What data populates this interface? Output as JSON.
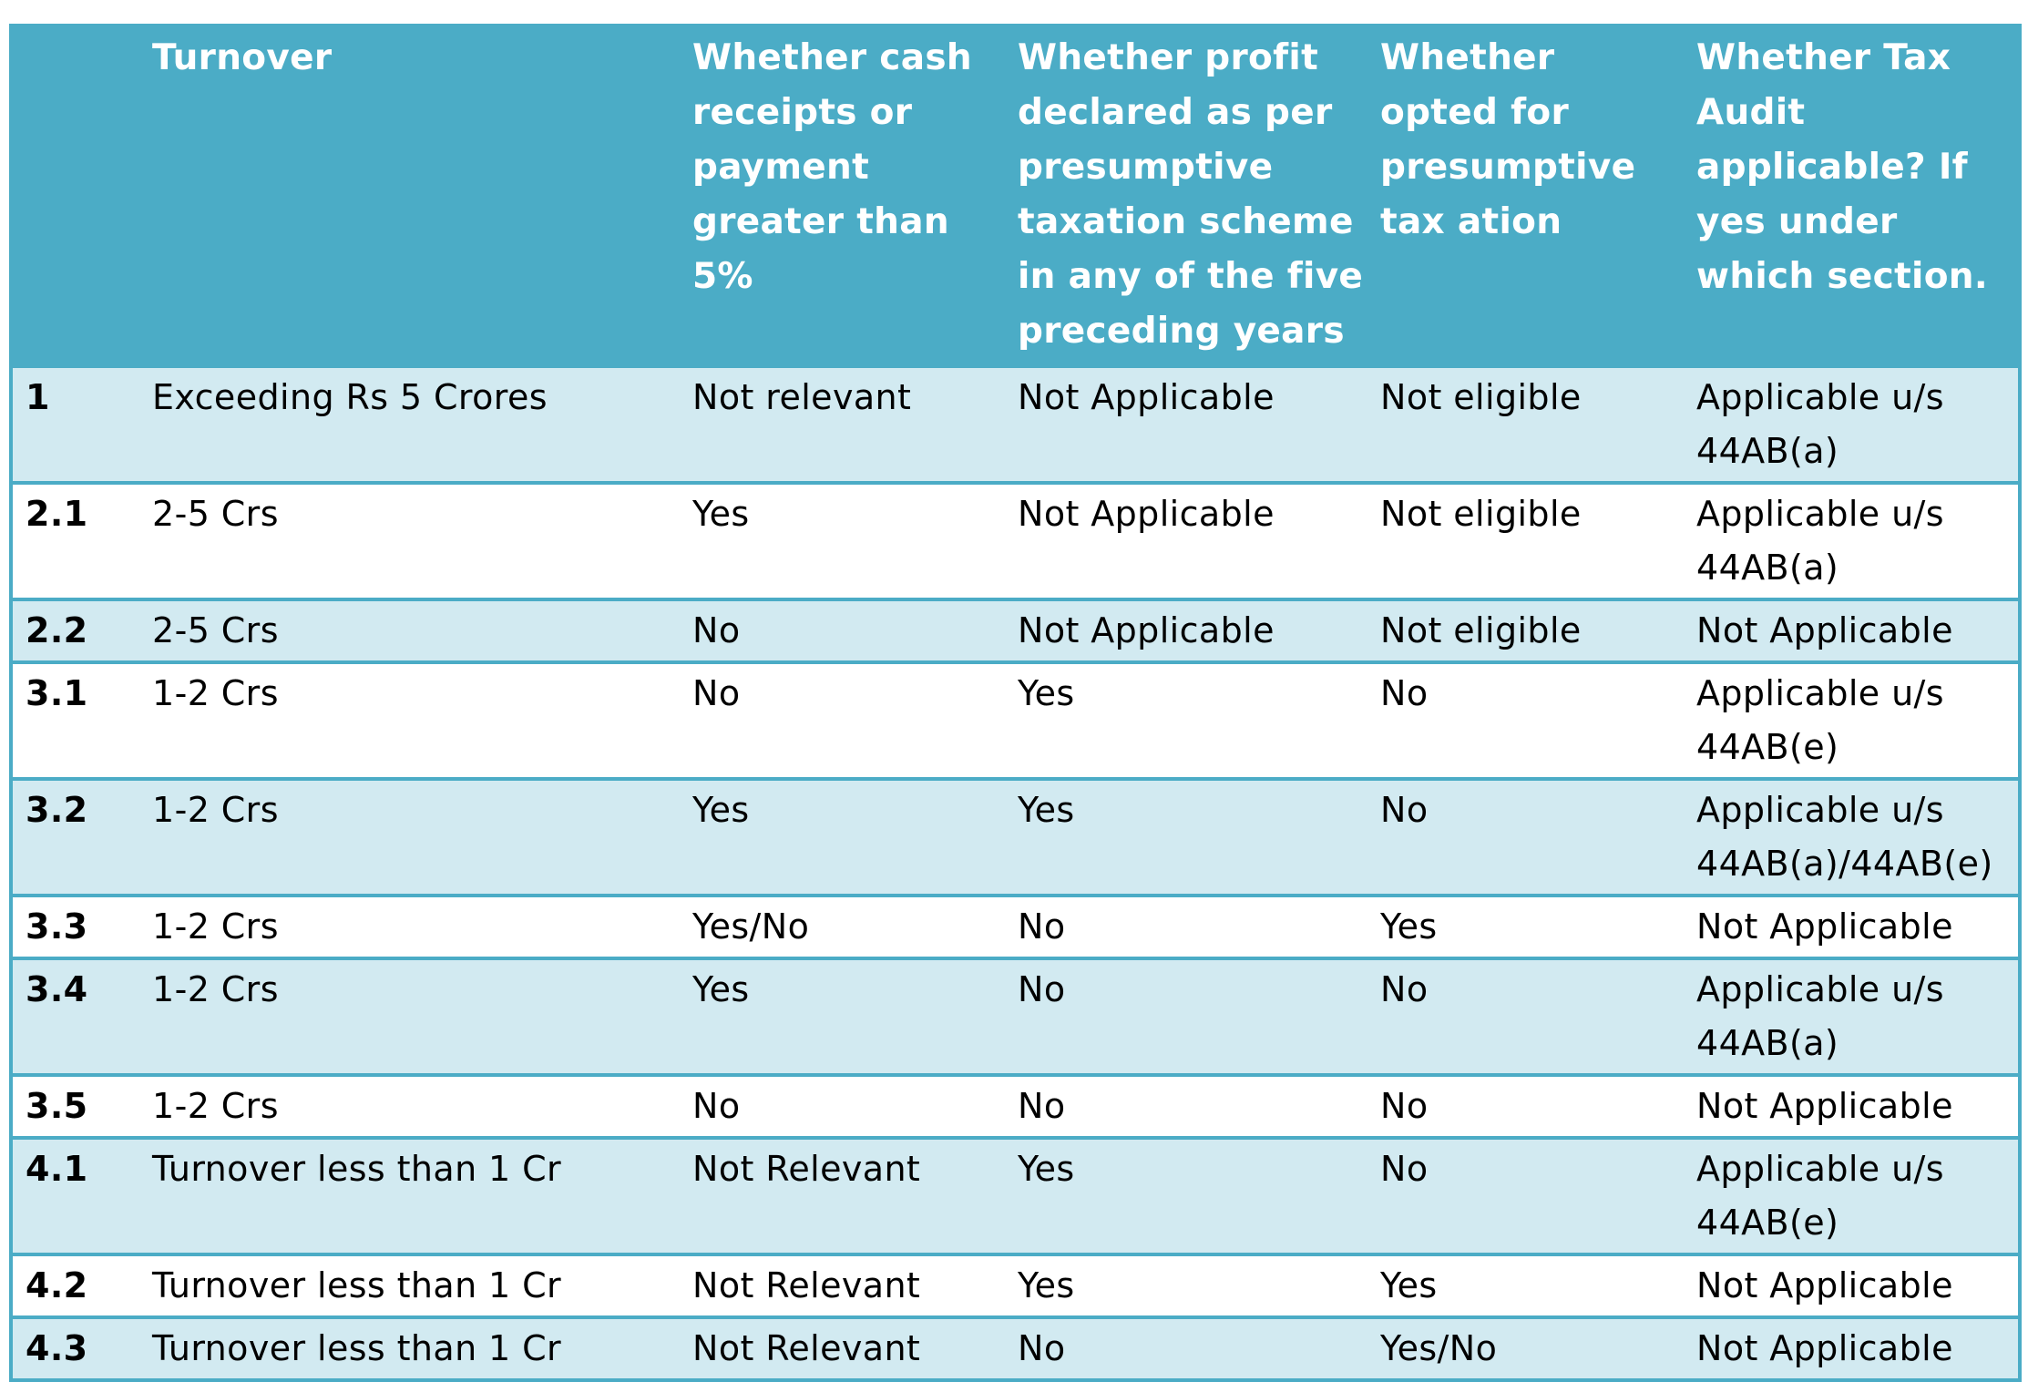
{
  "headers": [
    "",
    "Turnover",
    "Whether cash receipts or payment greater than 5%",
    "Whether profit declared as per presumptive taxation scheme in any of the five preceding years",
    "Whether opted for presumptive tax ation",
    "Whether Tax Audit applicable? If yes under which section."
  ],
  "rows": [
    {
      "id": "1",
      "turnover": "Exceeding Rs 5 Crores",
      "cash": "Not relevant",
      "profit": "Not Applicable",
      "opted": "Not eligible",
      "audit": "Applicable u/s 44AB(a)"
    },
    {
      "id": "2.1",
      "turnover": "2-5 Crs",
      "cash": "Yes",
      "profit": "Not Applicable",
      "opted": "Not eligible",
      "audit": "Applicable u/s 44AB(a)"
    },
    {
      "id": "2.2",
      "turnover": "2-5 Crs",
      "cash": "No",
      "profit": "Not Applicable",
      "opted": "Not eligible",
      "audit": "Not Applicable"
    },
    {
      "id": "3.1",
      "turnover": "1-2 Crs",
      "cash": "No",
      "profit": "Yes",
      "opted": "No",
      "audit": "Applicable u/s 44AB(e)"
    },
    {
      "id": "3.2",
      "turnover": "1-2 Crs",
      "cash": "Yes",
      "profit": "Yes",
      "opted": "No",
      "audit": "Applicable u/s 44AB(a)/44AB(e)"
    },
    {
      "id": "3.3",
      "turnover": "1-2 Crs",
      "cash": "Yes/No",
      "profit": "No",
      "opted": "Yes",
      "audit": "Not Applicable"
    },
    {
      "id": "3.4",
      "turnover": "1-2 Crs",
      "cash": "Yes",
      "profit": "No",
      "opted": "No",
      "audit": "Applicable u/s 44AB(a)"
    },
    {
      "id": "3.5",
      "turnover": "1-2 Crs",
      "cash": "No",
      "profit": "No",
      "opted": "No",
      "audit": "Not Applicable"
    },
    {
      "id": "4.1",
      "turnover": "Turnover less than 1 Cr",
      "cash": "Not Relevant",
      "profit": "Yes",
      "opted": "No",
      "audit": "Applicable u/s 44AB(e)"
    },
    {
      "id": "4.2",
      "turnover": "Turnover less than 1 Cr",
      "cash": "Not Relevant",
      "profit": "Yes",
      "opted": "Yes",
      "audit": "Not Applicable"
    },
    {
      "id": "4.3",
      "turnover": "Turnover less than 1 Cr",
      "cash": "Not Relevant",
      "profit": "No",
      "opted": "Yes/No",
      "audit": "Not Applicable"
    }
  ]
}
